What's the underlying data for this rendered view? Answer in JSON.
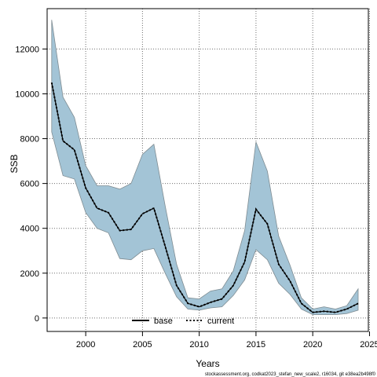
{
  "chart_data": {
    "type": "area",
    "xlabel": "Years",
    "ylabel": "SSB",
    "xlim": [
      1996.6,
      2024.9
    ],
    "ylim": [
      -600,
      13800
    ],
    "x_ticks": [
      2000,
      2005,
      2010,
      2015,
      2020,
      2025
    ],
    "y_ticks": [
      0,
      2000,
      4000,
      6000,
      8000,
      10000,
      12000
    ],
    "grid": true,
    "legend_position": "bottom-center",
    "legend": [
      {
        "name": "base",
        "style": "solid",
        "color": "#000000"
      },
      {
        "name": "current",
        "style": "dotted",
        "color": "#000000"
      }
    ],
    "x": [
      1997,
      1998,
      1999,
      2000,
      2001,
      2002,
      2003,
      2004,
      2005,
      2006,
      2007,
      2008,
      2009,
      2010,
      2011,
      2012,
      2013,
      2014,
      2015,
      2016,
      2017,
      2018,
      2019,
      2020,
      2021,
      2022,
      2023,
      2024
    ],
    "series": [
      {
        "name": "base",
        "values": [
          10500,
          7900,
          7500,
          5800,
          4900,
          4700,
          3900,
          3950,
          4650,
          4900,
          3200,
          1450,
          650,
          500,
          700,
          850,
          1450,
          2500,
          4850,
          4200,
          2400,
          1650,
          650,
          250,
          300,
          250,
          400,
          650
        ]
      },
      {
        "name": "current",
        "values": [
          10500,
          7900,
          7500,
          5800,
          4900,
          4700,
          3900,
          3950,
          4650,
          4900,
          3200,
          1450,
          650,
          500,
          700,
          850,
          1450,
          2500,
          4850,
          4200,
          2400,
          1650,
          650,
          250,
          300,
          250,
          400,
          650
        ]
      }
    ],
    "band": {
      "upper": [
        13300,
        9850,
        8950,
        6800,
        5900,
        5900,
        5750,
        6000,
        7300,
        7750,
        5000,
        2400,
        900,
        850,
        1200,
        1300,
        2100,
        3900,
        7850,
        6550,
        3650,
        2350,
        900,
        400,
        500,
        400,
        550,
        1300
      ],
      "lower": [
        8300,
        6350,
        6200,
        4700,
        4000,
        3800,
        2650,
        2600,
        3000,
        3100,
        2000,
        950,
        400,
        350,
        450,
        500,
        1000,
        1700,
        3050,
        2600,
        1550,
        1050,
        400,
        150,
        150,
        150,
        200,
        350
      ],
      "fill": "#a3c4d6",
      "stroke": "#7f8c92"
    },
    "colors": {
      "line": "#000000",
      "grid": "#6f6f6f",
      "axis": "#000000"
    }
  },
  "footer": "stockassessment.org, codkat2023_stefan_new_scale2, r16034, git e38ea2b498f0"
}
